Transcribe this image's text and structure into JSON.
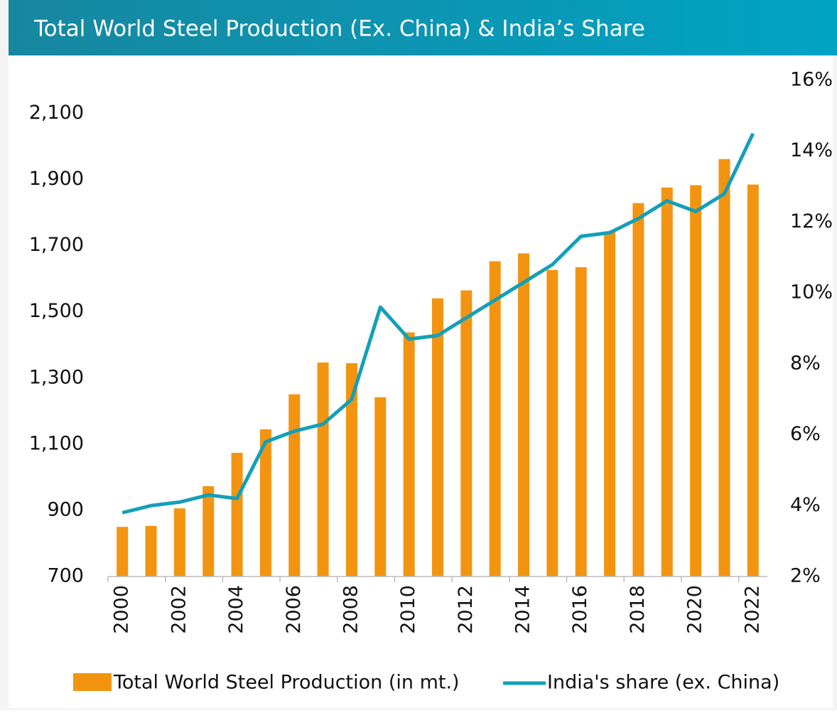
{
  "chart_data": {
    "type": "bar-line",
    "title": "Total World Steel Production (Ex. China) & India’s Share",
    "categories": [
      "2000",
      null,
      "2002",
      null,
      "2004",
      null,
      "2006",
      null,
      "2008",
      null,
      "2010",
      null,
      "2012",
      null,
      "2014",
      null,
      "2016",
      null,
      "2018",
      null,
      "2020",
      null,
      "2022"
    ],
    "series": [
      {
        "name": "Total World Steel Production (in mt.)",
        "color": "#f39410",
        "type": "bar",
        "values": [
          850,
          853,
          906,
          973,
          1074,
          1145,
          1251,
          1347,
          1345,
          1242,
          1438,
          1541,
          1565,
          1653,
          1677,
          1627,
          1635,
          1743,
          1829,
          1876,
          1883,
          1962,
          1885
        ]
      },
      {
        "name": "India's share (ex. China)",
        "color": "#12a0b8",
        "type": "line",
        "axis": "y2",
        "values": [
          3.8,
          4.0,
          4.1,
          4.3,
          4.2,
          5.8,
          6.1,
          6.3,
          7.0,
          9.6,
          8.7,
          8.8,
          9.3,
          9.8,
          10.3,
          10.8,
          11.6,
          11.7,
          12.1,
          12.6,
          12.3,
          12.8,
          14.5
        ]
      }
    ],
    "ylim": [
      700,
      2200
    ],
    "yticks": [
      700,
      900,
      {
        "value": 1100,
        "label": "1,100"
      },
      {
        "value": 1300,
        "label": "1,300"
      },
      {
        "value": 1500,
        "label": "1,500"
      },
      {
        "value": 1700,
        "label": "1,700"
      },
      {
        "value": 1900,
        "label": "1,900"
      },
      {
        "value": 2100,
        "label": "2,100"
      }
    ],
    "y2lim": [
      2,
      16
    ],
    "y2ticks": [
      {
        "value": 2,
        "label": "2%"
      },
      {
        "value": 4,
        "label": "4%"
      },
      {
        "value": 6,
        "label": "6%"
      },
      {
        "value": 8,
        "label": "8%"
      },
      {
        "value": 10,
        "label": "10%"
      },
      {
        "value": 12,
        "label": "12%"
      },
      {
        "value": 14,
        "label": "14%"
      },
      {
        "value": 16,
        "label": "16%"
      }
    ],
    "legend": "bottom"
  }
}
